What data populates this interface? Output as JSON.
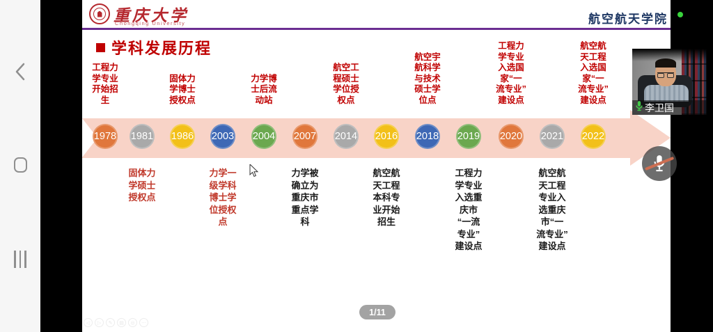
{
  "android_nav": {
    "back_icon": "back",
    "home_icon": "home",
    "recents_icon": "recents"
  },
  "header": {
    "university_cn": "重庆大学",
    "university_en": "Chongqing University",
    "college": "航空航天学院"
  },
  "slide": {
    "title": "学科发展历程",
    "page_indicator": "1/11",
    "timeline": [
      {
        "year": "1978",
        "circle_color": "#E0773C",
        "label_position": "above",
        "label_color": "#C00000",
        "label_lines": [
          "工程力",
          "学专业",
          "开始招",
          "生"
        ]
      },
      {
        "year": "1981",
        "circle_color": "#A9A9A9",
        "label_position": "below",
        "label_color": "#C0392B",
        "label_lines": [
          "固体力",
          "学硕士",
          "授权点"
        ]
      },
      {
        "year": "1986",
        "circle_color": "#F2C019",
        "label_position": "above",
        "label_color": "#C00000",
        "label_lines": [
          "固体力",
          "学博士",
          "授权点"
        ]
      },
      {
        "year": "2003",
        "circle_color": "#3E68B5",
        "label_position": "below",
        "label_color": "#C0392B",
        "label_lines": [
          "力学一",
          "级学科",
          "博士学",
          "位授权",
          "点"
        ]
      },
      {
        "year": "2004",
        "circle_color": "#6BA84F",
        "label_position": "above",
        "label_color": "#C00000",
        "label_lines": [
          "力学博",
          "士后流",
          "动站"
        ]
      },
      {
        "year": "2007",
        "circle_color": "#E0773C",
        "label_position": "below",
        "label_color": "#1A1A1A",
        "label_lines": [
          "力学被",
          "确立为",
          "重庆市",
          "重点学",
          "科"
        ]
      },
      {
        "year": "2014",
        "circle_color": "#A9A9A9",
        "label_position": "above",
        "label_color": "#C00000",
        "label_lines": [
          "航空工",
          "程硕士",
          "学位授",
          "权点"
        ]
      },
      {
        "year": "2016",
        "circle_color": "#F2C019",
        "label_position": "below",
        "label_color": "#1A1A1A",
        "label_lines": [
          "航空航",
          "天工程",
          "本科专",
          "业开始",
          "招生"
        ]
      },
      {
        "year": "2018",
        "circle_color": "#3E68B5",
        "label_position": "above",
        "label_color": "#C00000",
        "label_lines": [
          "航空宇",
          "航科学",
          "与技术",
          "硕士学",
          "位点"
        ]
      },
      {
        "year": "2019",
        "circle_color": "#6BA84F",
        "label_position": "below",
        "label_color": "#1A1A1A",
        "label_lines": [
          "工程力",
          "学专业",
          "入选重",
          "庆市",
          "“一流",
          "专业”",
          "建设点"
        ]
      },
      {
        "year": "2020",
        "circle_color": "#E0773C",
        "label_position": "above",
        "label_color": "#C00000",
        "label_lines": [
          "工程力",
          "学专业",
          "入选国",
          "家“一",
          "流专业”",
          "建设点"
        ]
      },
      {
        "year": "2021",
        "circle_color": "#A9A9A9",
        "label_position": "below",
        "label_color": "#1A1A1A",
        "label_lines": [
          "航空航",
          "天工程",
          "专业入",
          "选重庆",
          "市“一",
          "流专业”",
          "建设点"
        ]
      },
      {
        "year": "2022",
        "circle_color": "#F2C019",
        "label_position": "above",
        "label_color": "#C00000",
        "label_lines": [
          "航空航",
          "天工程",
          "入选国",
          "家“一",
          "流专业”",
          "建设点"
        ]
      }
    ],
    "toolbar_icons": [
      {
        "name": "prev-slide-icon",
        "glyph": "◁"
      },
      {
        "name": "next-slide-icon",
        "glyph": "▷"
      },
      {
        "name": "pen-icon",
        "glyph": "✎"
      },
      {
        "name": "eraser-icon",
        "glyph": "▤"
      },
      {
        "name": "magnifier-icon",
        "glyph": "◎"
      },
      {
        "name": "more-icon",
        "glyph": "⋯"
      }
    ]
  },
  "video_call": {
    "participant_name": "李卫国",
    "participant_mic_icon": "mic-on-green",
    "self_mic_muted": true,
    "status_dot_color": "#39D43C"
  },
  "colors": {
    "accent_red": "#C00000",
    "band_salmon": "#F8D3C7",
    "divider_purple": "#6B2D91",
    "college_navy": "#1F3864",
    "label_black": "#1A1A1A"
  }
}
